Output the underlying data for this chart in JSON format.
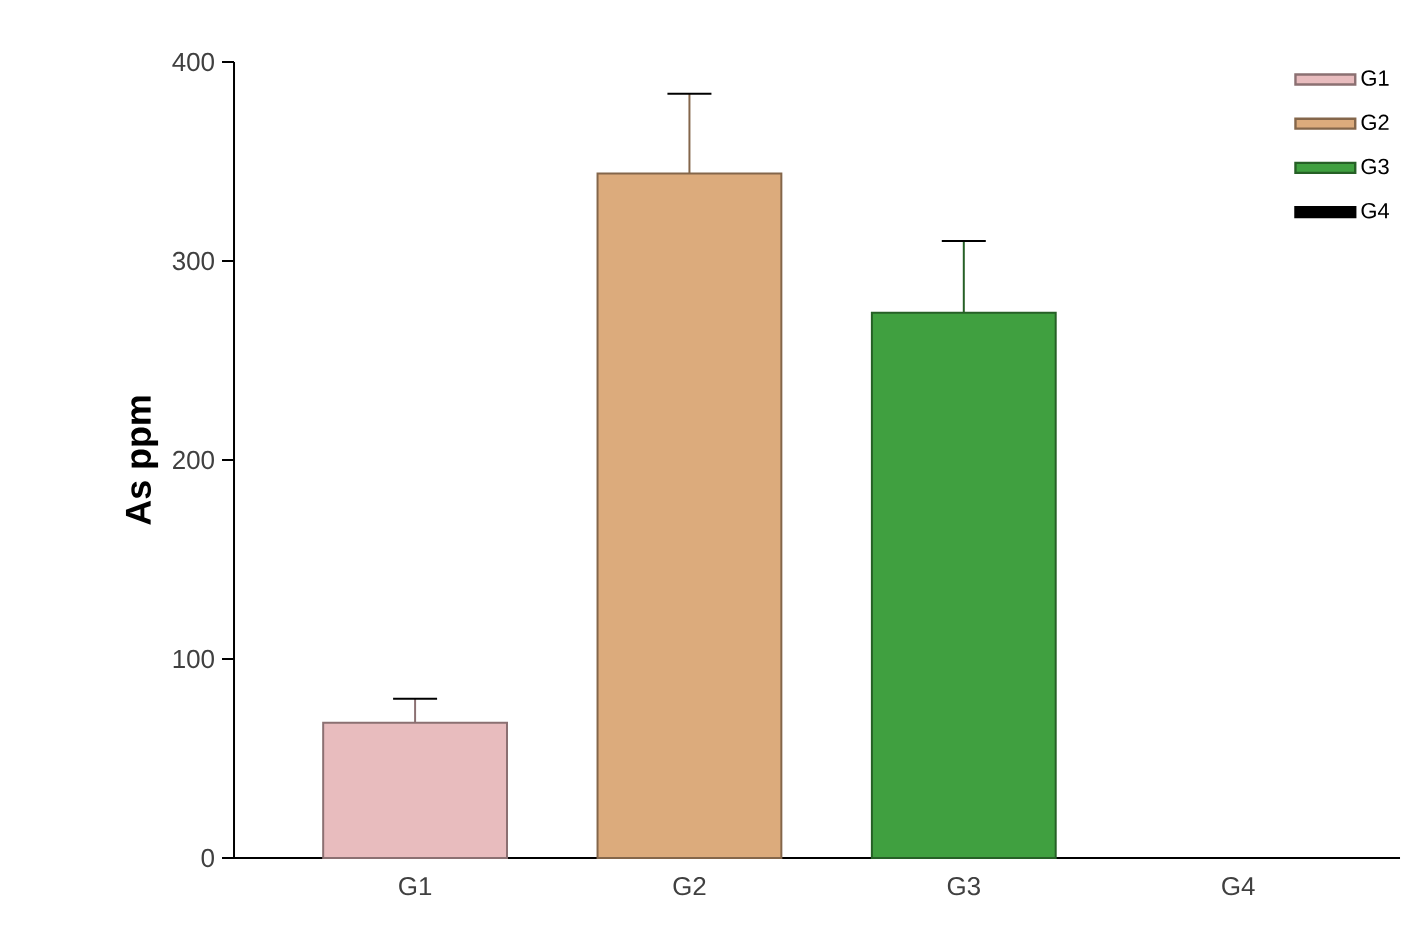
{
  "chart_data": {
    "type": "bar",
    "ylabel": "As ppm",
    "categories": [
      "G1",
      "G2",
      "G3",
      "G4"
    ],
    "series": [
      {
        "name": "G1",
        "color": "#e8bcbe",
        "values": [
          68,
          null,
          null,
          null
        ],
        "errors": [
          12,
          null,
          null,
          null
        ]
      },
      {
        "name": "G2",
        "color": "#dcab7c",
        "values": [
          null,
          344,
          null,
          null
        ],
        "errors": [
          null,
          40,
          null,
          null
        ]
      },
      {
        "name": "G3",
        "color": "#40a040",
        "values": [
          null,
          null,
          274,
          null
        ],
        "errors": [
          null,
          null,
          36,
          null
        ]
      },
      {
        "name": "G4",
        "color": "#000000",
        "values": [
          null,
          null,
          null,
          0
        ],
        "errors": [
          null,
          null,
          null,
          null
        ]
      }
    ],
    "ylim": [
      0,
      400
    ],
    "yticks": [
      0,
      100,
      200,
      300,
      400
    ],
    "grid": false,
    "legend": "top right"
  }
}
